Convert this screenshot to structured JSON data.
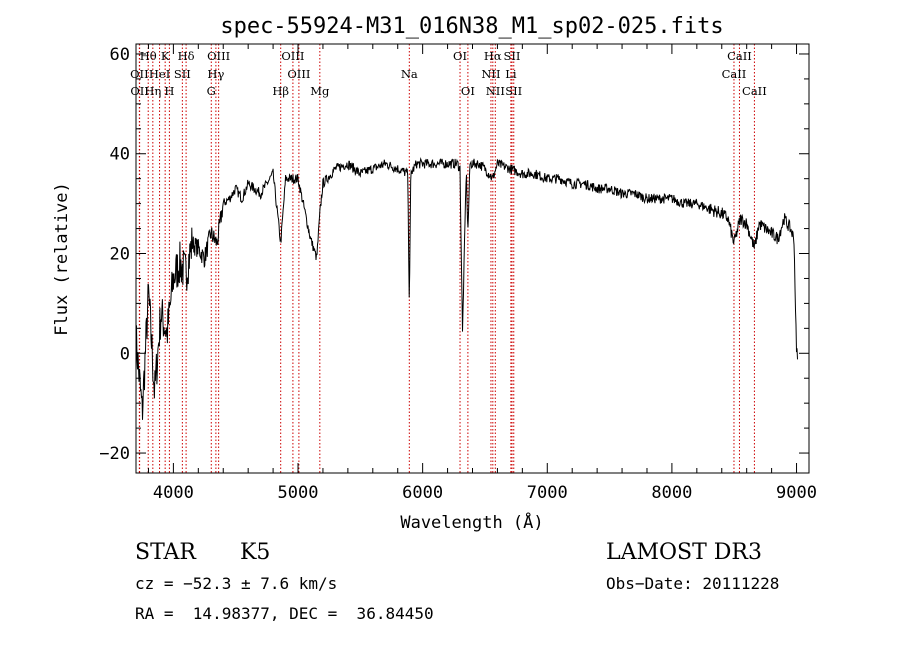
{
  "chart_data": {
    "type": "line",
    "title": "spec-55924-M31_016N38_M1_sp02-025.fits",
    "xlabel": "Wavelength (Å)",
    "ylabel": "Flux (relative)",
    "xlim": [
      3700,
      9100
    ],
    "ylim": [
      -24,
      62
    ],
    "xticks": [
      4000,
      5000,
      6000,
      7000,
      8000,
      9000
    ],
    "xtick_labels": [
      "4000",
      "5000",
      "6000",
      "7000",
      "8000",
      "9000"
    ],
    "yticks": [
      -20,
      0,
      20,
      40,
      60
    ],
    "ytick_labels": [
      "−20",
      "0",
      "20",
      "40",
      "60"
    ],
    "series": [
      {
        "name": "spectrum",
        "x": [
          3700,
          3750,
          3800,
          3850,
          3900,
          3950,
          4000,
          4050,
          4100,
          4150,
          4200,
          4250,
          4300,
          4350,
          4400,
          4450,
          4500,
          4550,
          4600,
          4700,
          4800,
          4861,
          4900,
          5000,
          5100,
          5150,
          5175,
          5200,
          5300,
          5400,
          5500,
          5600,
          5700,
          5800,
          5880,
          5893,
          5905,
          5950,
          6000,
          6100,
          6200,
          6280,
          6300,
          6320,
          6350,
          6363,
          6380,
          6450,
          6500,
          6563,
          6600,
          6700,
          6800,
          6900,
          7000,
          7100,
          7200,
          7300,
          7400,
          7500,
          7600,
          7700,
          7800,
          7900,
          8000,
          8100,
          8200,
          8300,
          8400,
          8450,
          8498,
          8550,
          8600,
          8662,
          8700,
          8750,
          8800,
          8850,
          8900,
          8950,
          8980,
          9000,
          9010
        ],
        "y": [
          3,
          -12,
          12,
          -8,
          8,
          4,
          15,
          18,
          16,
          22,
          21,
          19,
          24,
          22,
          30,
          31,
          33,
          31,
          34,
          32,
          36,
          22,
          35,
          35,
          23,
          19,
          28,
          34,
          37,
          38,
          36,
          37,
          38,
          37,
          36,
          10,
          36,
          38,
          38,
          38,
          38,
          38,
          37,
          4,
          37,
          24,
          38,
          38,
          37,
          35,
          38,
          37,
          36,
          36,
          35,
          35,
          34,
          34,
          33,
          33,
          32,
          32,
          31,
          31,
          31,
          30,
          30,
          29,
          28,
          27,
          22,
          27,
          26,
          21,
          26,
          25,
          24,
          23,
          27,
          25,
          23,
          0,
          0
        ]
      }
    ],
    "lines": [
      {
        "name": "Hθ",
        "wave": 3798,
        "row": 0
      },
      {
        "name": "K",
        "wave": 3934,
        "row": 0
      },
      {
        "name": "Hδ",
        "wave": 4102,
        "row": 0
      },
      {
        "name": "OIII",
        "wave": 4363,
        "row": 0
      },
      {
        "name": "OIII",
        "wave": 4959,
        "row": 0
      },
      {
        "name": "OI",
        "wave": 6300,
        "row": 0
      },
      {
        "name": "Hα",
        "wave": 6563,
        "row": 0
      },
      {
        "name": "SII",
        "wave": 6717,
        "row": 0
      },
      {
        "name": "CaII",
        "wave": 8542,
        "row": 0
      },
      {
        "name": "OII",
        "wave": 3727,
        "row": 1
      },
      {
        "name": "HeI",
        "wave": 3889,
        "row": 1
      },
      {
        "name": "SII",
        "wave": 4072,
        "row": 1
      },
      {
        "name": "Hγ",
        "wave": 4341,
        "row": 1
      },
      {
        "name": "OIII",
        "wave": 5007,
        "row": 1
      },
      {
        "name": "NII",
        "wave": 6548,
        "row": 1
      },
      {
        "name": "Li",
        "wave": 6708,
        "row": 1
      },
      {
        "name": "CaII",
        "wave": 8498,
        "row": 1
      },
      {
        "name": "OII",
        "wave": 3729,
        "row": 2
      },
      {
        "name": "Hη",
        "wave": 3835,
        "row": 2
      },
      {
        "name": "H",
        "wave": 3968,
        "row": 2
      },
      {
        "name": "G",
        "wave": 4304,
        "row": 2
      },
      {
        "name": "Hβ",
        "wave": 4861,
        "row": 2
      },
      {
        "name": "Mg",
        "wave": 5175,
        "row": 2
      },
      {
        "name": "Na",
        "wave": 5893,
        "row": 1
      },
      {
        "name": "OI",
        "wave": 6363,
        "row": 2
      },
      {
        "name": "NII",
        "wave": 6583,
        "row": 2
      },
      {
        "name": "SII",
        "wave": 6731,
        "row": 2
      },
      {
        "name": "CaII",
        "wave": 8662,
        "row": 2
      }
    ],
    "line_color": "#cc0000"
  },
  "info": {
    "class": "STAR",
    "subclass": "K5",
    "survey": "LAMOST DR3",
    "cz": "cz = −52.3 ± 7.6 km/s",
    "obs_date": "Obs−Date: 20111228",
    "coords": "RA =  14.98377, DEC =  36.84450"
  }
}
